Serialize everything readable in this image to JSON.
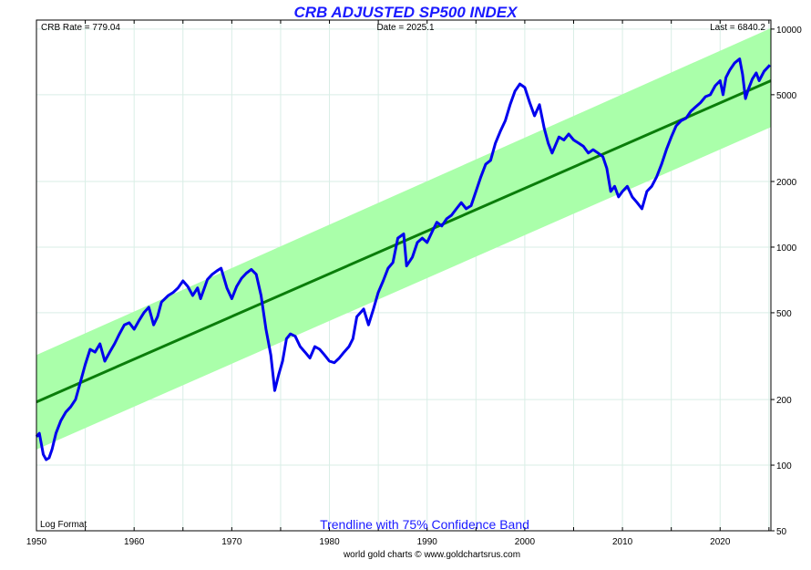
{
  "chart_data": {
    "type": "line",
    "title": "CRB ADJUSTED SP500 INDEX",
    "header": {
      "left": "CRB Rate = 779.04",
      "center": "Date = 2025.1",
      "right": "Last = 6840.2"
    },
    "scale_note": "Log Format",
    "band_label": "Trendline with 75% Confidence Band",
    "credit": "world gold charts © www.goldchartsrus.com",
    "y_scale": "log",
    "ylim": [
      50,
      11000
    ],
    "xlim": [
      1950,
      2025.2
    ],
    "x_ticks": [
      "1950",
      "1960",
      "1970",
      "1980",
      "1990",
      "2000",
      "2010",
      "2020"
    ],
    "y_ticks": [
      "10000",
      "5000",
      "2000",
      "1000",
      "500",
      "200",
      "100",
      "50"
    ],
    "grid": true,
    "colors": {
      "title": "#1a1aff",
      "index_line": "#0000ee",
      "trendline": "#0a7d0a",
      "band_fill": "#aaffaa",
      "grid": "#d9eee6"
    },
    "trendline": {
      "x": [
        1950,
        2025.2
      ],
      "y": [
        195,
        5800
      ]
    },
    "band_upper": {
      "x": [
        1950,
        2025.2
      ],
      "y": [
        320,
        10100
      ]
    },
    "band_lower": {
      "x": [
        1950,
        2025.2
      ],
      "y": [
        118,
        3550
      ]
    },
    "series": [
      {
        "name": "",
        "x": [
          1950,
          1950.3,
          1950.7,
          1951.0,
          1951.3,
          1951.6,
          1952,
          1952.5,
          1953,
          1953.5,
          1954,
          1954.5,
          1955,
          1955.5,
          1956,
          1956.5,
          1957,
          1957.5,
          1958,
          1958.5,
          1959,
          1959.5,
          1960,
          1960.5,
          1961,
          1961.5,
          1962,
          1962.4,
          1962.8,
          1963.5,
          1964,
          1964.5,
          1965,
          1965.5,
          1966,
          1966.5,
          1966.8,
          1967.5,
          1968,
          1968.5,
          1968.9,
          1969.5,
          1970,
          1970.5,
          1971,
          1971.5,
          1972,
          1972.5,
          1973,
          1973.5,
          1974,
          1974.4,
          1974.8,
          1975.2,
          1975.6,
          1976,
          1976.5,
          1977,
          1977.5,
          1978,
          1978.5,
          1979,
          1979.5,
          1980,
          1980.5,
          1981,
          1981.5,
          1982,
          1982.4,
          1982.8,
          1983.5,
          1984,
          1984.5,
          1985,
          1985.5,
          1986,
          1986.5,
          1987,
          1987.6,
          1987.9,
          1988.5,
          1989,
          1989.5,
          1990,
          1990.6,
          1991,
          1991.5,
          1992,
          1992.5,
          1993,
          1993.5,
          1994,
          1994.5,
          1995,
          1995.5,
          1996,
          1996.5,
          1997,
          1997.5,
          1998,
          1998.5,
          1999,
          1999.5,
          2000,
          2000.5,
          2001,
          2001.5,
          2002,
          2002.4,
          2002.8,
          2003.5,
          2004,
          2004.5,
          2005,
          2005.5,
          2006,
          2006.5,
          2007,
          2007.5,
          2008,
          2008.4,
          2008.8,
          2009.2,
          2009.6,
          2010,
          2010.5,
          2011,
          2011.5,
          2012,
          2012.5,
          2013,
          2013.5,
          2014,
          2014.5,
          2015,
          2015.5,
          2016,
          2016.5,
          2017,
          2017.5,
          2018,
          2018.5,
          2019,
          2019.5,
          2020,
          2020.3,
          2020.6,
          2021,
          2021.5,
          2022,
          2022.3,
          2022.6,
          2022.9,
          2023.3,
          2023.7,
          2024,
          2024.5,
          2025.1
        ],
        "y": [
          135,
          140,
          112,
          106,
          108,
          118,
          140,
          160,
          175,
          185,
          200,
          240,
          290,
          340,
          330,
          360,
          300,
          330,
          360,
          400,
          440,
          450,
          420,
          460,
          500,
          530,
          440,
          480,
          560,
          600,
          620,
          650,
          700,
          660,
          600,
          650,
          580,
          710,
          750,
          780,
          800,
          650,
          580,
          660,
          720,
          760,
          790,
          750,
          600,
          420,
          320,
          220,
          260,
          300,
          380,
          400,
          390,
          350,
          330,
          310,
          350,
          340,
          320,
          300,
          295,
          310,
          330,
          350,
          380,
          480,
          520,
          440,
          520,
          620,
          700,
          800,
          850,
          1100,
          1150,
          820,
          900,
          1050,
          1100,
          1050,
          1200,
          1300,
          1250,
          1350,
          1400,
          1500,
          1600,
          1500,
          1550,
          1800,
          2100,
          2400,
          2500,
          3000,
          3400,
          3800,
          4500,
          5200,
          5600,
          5400,
          4600,
          4000,
          4500,
          3500,
          3000,
          2700,
          3200,
          3100,
          3300,
          3100,
          3000,
          2900,
          2700,
          2800,
          2700,
          2600,
          2300,
          1800,
          1900,
          1700,
          1800,
          1900,
          1700,
          1600,
          1500,
          1800,
          1900,
          2100,
          2400,
          2800,
          3200,
          3600,
          3800,
          3900,
          4200,
          4400,
          4600,
          4900,
          5000,
          5500,
          5800,
          5000,
          6000,
          6500,
          7000,
          7300,
          6200,
          4800,
          5300,
          5900,
          6300,
          5800,
          6400,
          6840
        ]
      }
    ]
  }
}
